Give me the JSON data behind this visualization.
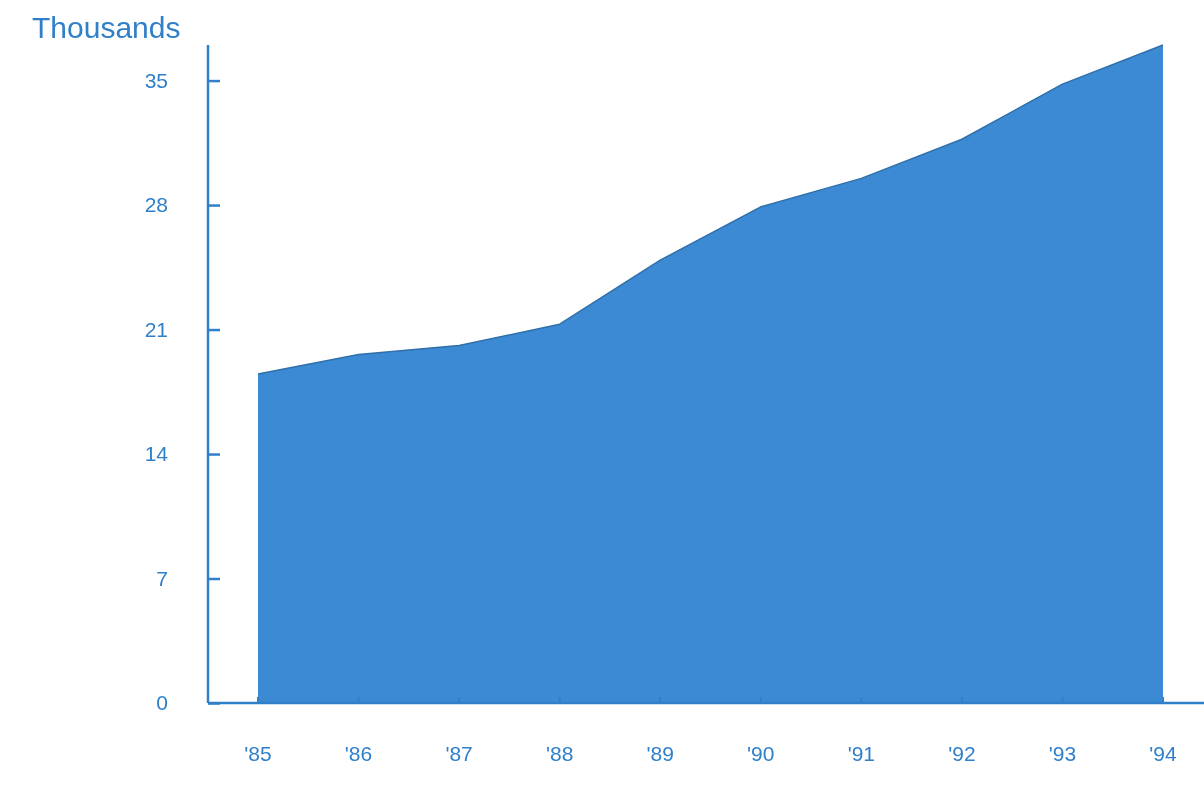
{
  "chart_data": {
    "type": "area",
    "ylabel": "Thousands",
    "categories": [
      "'85",
      "'86",
      "'87",
      "'88",
      "'89",
      "'90",
      "'91",
      "'92",
      "'93",
      "'94"
    ],
    "series": [
      {
        "color": "#3b8ad3",
        "values": [
          18.5,
          19.6,
          20.1,
          21.3,
          24.9,
          27.9,
          29.5,
          31.7,
          34.8,
          37.0
        ]
      }
    ],
    "ylim": [
      0,
      37
    ],
    "yticks": [
      0,
      7,
      14,
      21,
      28,
      35
    ],
    "grid": false
  }
}
